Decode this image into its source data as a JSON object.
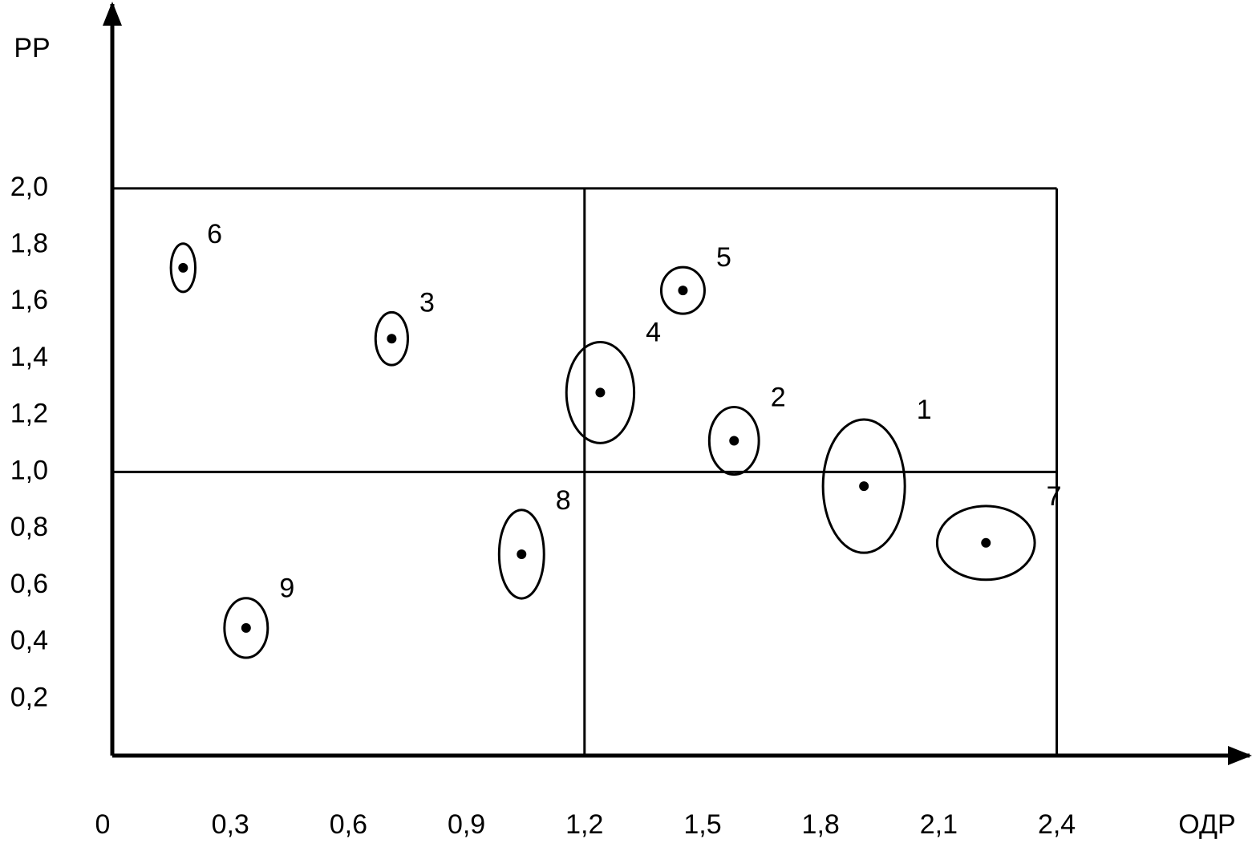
{
  "chart_data": {
    "type": "scatter",
    "x_label": "ОДР",
    "y_label": "РР",
    "xlim": [
      0,
      2.89
    ],
    "ylim": [
      0,
      2.65
    ],
    "xticks": [
      0,
      {
        "value": 0.3,
        "label": "0,3"
      },
      {
        "value": 0.6,
        "label": "0,6"
      },
      {
        "value": 0.9,
        "label": "0,9"
      },
      {
        "value": 1.2,
        "label": "1,2"
      },
      {
        "value": 1.5,
        "label": "1,5"
      },
      {
        "value": 1.8,
        "label": "1,8"
      },
      {
        "value": 2.1,
        "label": "2,1"
      },
      {
        "value": 2.4,
        "label": "2,4"
      }
    ],
    "yticks": [
      {
        "value": 0.2,
        "label": "0,2"
      },
      {
        "value": 0.4,
        "label": "0,4"
      },
      {
        "value": 0.6,
        "label": "0,6"
      },
      {
        "value": 0.8,
        "label": "0,8"
      },
      {
        "value": 1.0,
        "label": "1,0"
      },
      {
        "value": 1.2,
        "label": "1,2"
      },
      {
        "value": 1.4,
        "label": "1,4"
      },
      {
        "value": 1.6,
        "label": "1,6"
      },
      {
        "value": 1.8,
        "label": "1,8"
      },
      {
        "value": 2.0,
        "label": "2,0"
      }
    ],
    "quadrant_x": [
      1.2,
      2.4
    ],
    "quadrant_y": [
      1.0,
      2.0
    ],
    "labels": [
      "6",
      "3",
      "5",
      "4",
      "2",
      "1",
      "7",
      "8",
      "9"
    ],
    "x": [
      0.18,
      0.71,
      1.45,
      1.24,
      1.58,
      1.91,
      2.22,
      1.04,
      0.34
    ],
    "y": [
      1.72,
      1.47,
      1.64,
      1.28,
      1.11,
      0.95,
      0.75,
      0.71,
      0.45
    ],
    "ellipse_rx": [
      0.031,
      0.041,
      0.055,
      0.086,
      0.063,
      0.104,
      0.124,
      0.057,
      0.055
    ],
    "ellipse_ry": [
      0.085,
      0.093,
      0.082,
      0.178,
      0.119,
      0.235,
      0.13,
      0.156,
      0.105
    ],
    "color": "#000000"
  }
}
